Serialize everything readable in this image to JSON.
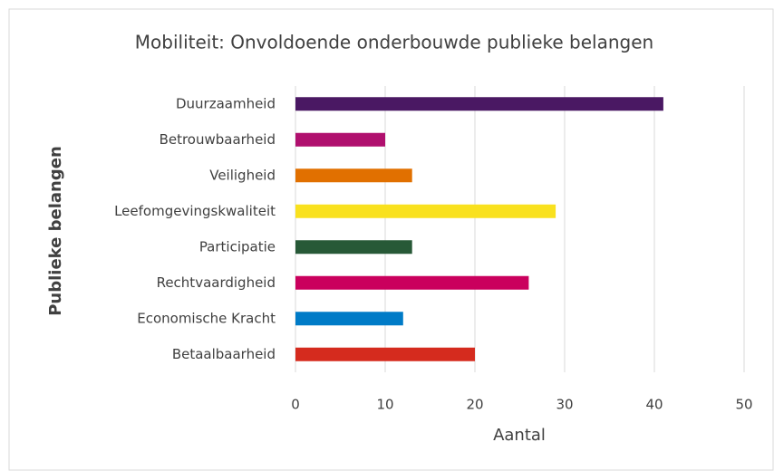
{
  "chart_data": {
    "type": "barh",
    "title": "Mobiliteit: Onvoldoende onderbouwde publieke belangen",
    "xlabel": "Aantal",
    "ylabel": "Publieke belangen",
    "categories": [
      "Duurzaamheid",
      "Betrouwbaarheid",
      "Veiligheid",
      "Leefomgevingskwaliteit",
      "Participatie",
      "Rechtvaardigheid",
      "Economische Kracht",
      "Betaalbaarheid"
    ],
    "values": [
      41,
      10,
      13,
      29,
      13,
      26,
      12,
      20
    ],
    "colors": [
      "#4a1863",
      "#b0106e",
      "#e17000",
      "#f9e11e",
      "#275937",
      "#ca005d",
      "#007bc7",
      "#d52b1e"
    ],
    "xlim": [
      0,
      50
    ],
    "xticks": [
      0,
      10,
      20,
      30,
      40,
      50
    ],
    "grid": true
  }
}
